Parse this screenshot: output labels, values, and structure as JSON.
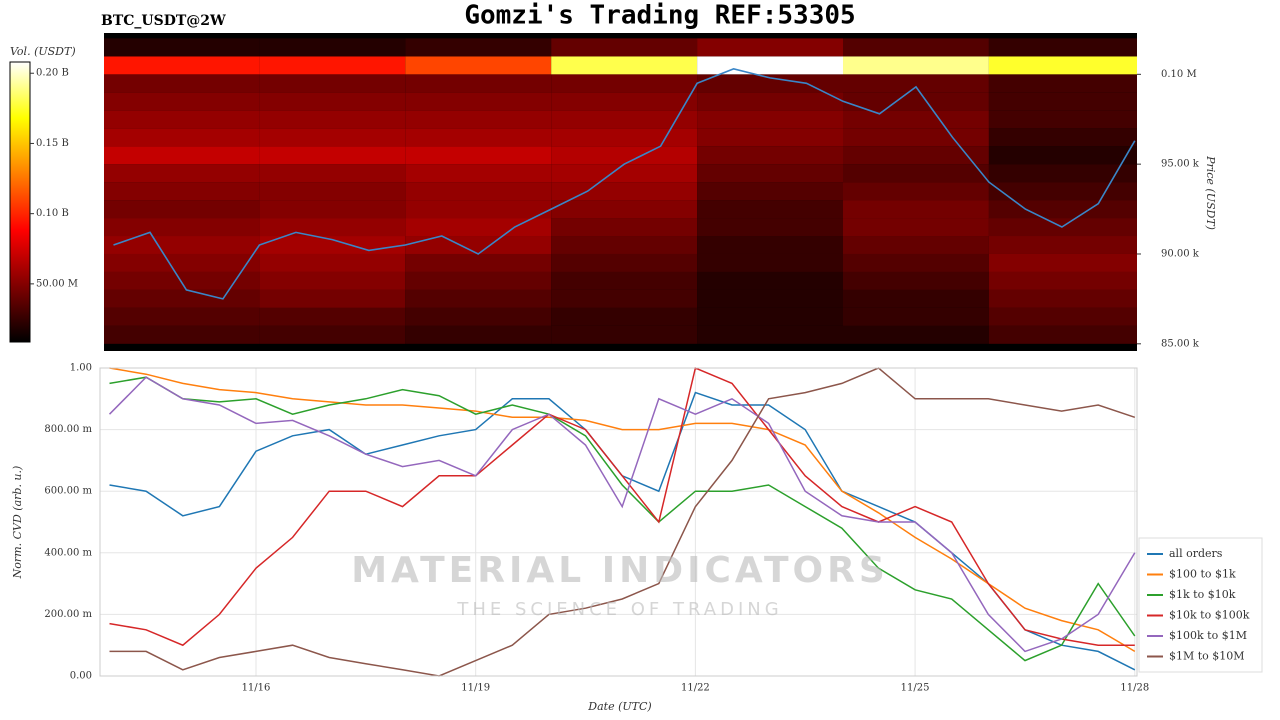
{
  "chart_data": [
    {
      "type": "heatmap",
      "title": "Gomzi's Trading REF:53305",
      "subtitle": "BTC_USDT@2W",
      "ylabel": "Price (USDT)",
      "colorbar_label": "Vol. (USDT)",
      "xlim": [
        13.87,
        28.03
      ],
      "ylim": [
        84600,
        102300
      ],
      "yticks": [
        {
          "value": 85000,
          "label": "85.00 k"
        },
        {
          "value": 90000,
          "label": "90.00 k"
        },
        {
          "value": 95000,
          "label": "95.00 k"
        },
        {
          "value": 100000,
          "label": "0.10 M"
        }
      ],
      "clim": [
        8600000,
        208000000
      ],
      "cticks": [
        {
          "value": 50000000,
          "label": "50.00 M"
        },
        {
          "value": 100000000,
          "label": "0.10 B"
        },
        {
          "value": 150000000,
          "label": "0.15 B"
        },
        {
          "value": 200000000,
          "label": "0.20 B"
        }
      ],
      "x_edges": [
        13.87,
        16,
        18,
        20,
        22,
        24,
        26,
        28.03
      ],
      "y_edges": [
        85000,
        86000,
        87000,
        88000,
        89000,
        90000,
        91000,
        92000,
        93000,
        94000,
        95000,
        96000,
        97000,
        98000,
        99000,
        100000,
        101000,
        102000
      ],
      "values": [
        [
          30000000,
          30000000,
          25000000,
          25000000,
          20000000,
          20000000,
          30000000
        ],
        [
          35000000,
          35000000,
          30000000,
          25000000,
          20000000,
          25000000,
          35000000
        ],
        [
          40000000,
          45000000,
          35000000,
          30000000,
          20000000,
          25000000,
          40000000
        ],
        [
          45000000,
          50000000,
          40000000,
          30000000,
          20000000,
          30000000,
          45000000
        ],
        [
          50000000,
          55000000,
          45000000,
          35000000,
          25000000,
          35000000,
          50000000
        ],
        [
          55000000,
          60000000,
          55000000,
          40000000,
          25000000,
          40000000,
          45000000
        ],
        [
          50000000,
          55000000,
          60000000,
          45000000,
          30000000,
          45000000,
          40000000
        ],
        [
          45000000,
          50000000,
          55000000,
          50000000,
          30000000,
          45000000,
          35000000
        ],
        [
          50000000,
          50000000,
          55000000,
          55000000,
          35000000,
          40000000,
          30000000
        ],
        [
          55000000,
          55000000,
          60000000,
          60000000,
          40000000,
          35000000,
          25000000
        ],
        [
          70000000,
          70000000,
          70000000,
          65000000,
          45000000,
          40000000,
          20000000
        ],
        [
          60000000,
          60000000,
          60000000,
          60000000,
          50000000,
          45000000,
          25000000
        ],
        [
          55000000,
          55000000,
          55000000,
          55000000,
          50000000,
          45000000,
          30000000
        ],
        [
          50000000,
          50000000,
          50000000,
          50000000,
          45000000,
          40000000,
          30000000
        ],
        [
          45000000,
          45000000,
          45000000,
          45000000,
          40000000,
          40000000,
          30000000
        ],
        [
          95000000,
          95000000,
          110000000,
          180000000,
          208000000,
          190000000,
          175000000
        ],
        [
          20000000,
          20000000,
          25000000,
          40000000,
          50000000,
          35000000,
          25000000
        ]
      ],
      "price": {
        "color": "#3a86c8",
        "x": [
          14,
          14.5,
          15,
          15.5,
          16,
          16.5,
          17,
          17.5,
          18,
          18.5,
          19,
          19.5,
          20,
          20.5,
          21,
          21.5,
          22,
          22.5,
          23,
          23.5,
          24,
          24.5,
          25,
          25.5,
          26,
          26.5,
          27,
          27.5,
          28
        ],
        "values": [
          90500,
          91200,
          88000,
          87500,
          90500,
          91200,
          90800,
          90200,
          90500,
          91000,
          90000,
          91500,
          92500,
          93500,
          95000,
          96000,
          99500,
          100300,
          99800,
          99500,
          98500,
          97800,
          99300,
          96500,
          94000,
          92500,
          91500,
          92800,
          96300
        ]
      }
    },
    {
      "type": "line",
      "xlabel": "Date (UTC)",
      "ylabel": "Norm. CVD (arb. u.)",
      "watermark": "MATERIAL INDICATORS",
      "watermark_sub": "THE SCIENCE OF TRADING",
      "xlim": [
        13.87,
        28.03
      ],
      "ylim": [
        0,
        1
      ],
      "xticks": [
        {
          "value": 16,
          "label": "11/16"
        },
        {
          "value": 19,
          "label": "11/19"
        },
        {
          "value": 22,
          "label": "11/22"
        },
        {
          "value": 25,
          "label": "11/25"
        },
        {
          "value": 28,
          "label": "11/28"
        }
      ],
      "yticks": [
        {
          "value": 0,
          "label": "0.00"
        },
        {
          "value": 0.2,
          "label": "200.00 m"
        },
        {
          "value": 0.4,
          "label": "400.00 m"
        },
        {
          "value": 0.6,
          "label": "600.00 m"
        },
        {
          "value": 0.8,
          "label": "800.00 m"
        },
        {
          "value": 1,
          "label": "1.00"
        }
      ],
      "grid": true,
      "legend": "lower right",
      "x": [
        14,
        14.5,
        15,
        15.5,
        16,
        16.5,
        17,
        17.5,
        18,
        18.5,
        19,
        19.5,
        20,
        20.5,
        21,
        21.5,
        22,
        22.5,
        23,
        23.5,
        24,
        24.5,
        25,
        25.5,
        26,
        26.5,
        27,
        27.5,
        28
      ],
      "series": [
        {
          "name": "all orders",
          "color": "#1f77b4",
          "values": [
            0.62,
            0.6,
            0.52,
            0.55,
            0.73,
            0.78,
            0.8,
            0.72,
            0.75,
            0.78,
            0.8,
            0.9,
            0.9,
            0.8,
            0.65,
            0.6,
            0.92,
            0.88,
            0.88,
            0.8,
            0.6,
            0.55,
            0.5,
            0.4,
            0.3,
            0.15,
            0.1,
            0.08,
            0.02
          ]
        },
        {
          "name": "$100 to $1k",
          "color": "#ff7f0e",
          "values": [
            1,
            0.98,
            0.95,
            0.93,
            0.92,
            0.9,
            0.89,
            0.88,
            0.88,
            0.87,
            0.86,
            0.84,
            0.84,
            0.83,
            0.8,
            0.8,
            0.82,
            0.82,
            0.8,
            0.75,
            0.6,
            0.53,
            0.45,
            0.38,
            0.3,
            0.22,
            0.18,
            0.15,
            0.08
          ]
        },
        {
          "name": "$1k to $10k",
          "color": "#2ca02c",
          "values": [
            0.95,
            0.97,
            0.9,
            0.89,
            0.9,
            0.85,
            0.88,
            0.9,
            0.93,
            0.91,
            0.85,
            0.88,
            0.85,
            0.78,
            0.62,
            0.5,
            0.6,
            0.6,
            0.62,
            0.55,
            0.48,
            0.35,
            0.28,
            0.25,
            0.15,
            0.05,
            0.1,
            0.3,
            0.13
          ]
        },
        {
          "name": "$10k to $100k",
          "color": "#d62728",
          "values": [
            0.17,
            0.15,
            0.1,
            0.2,
            0.35,
            0.45,
            0.6,
            0.6,
            0.55,
            0.65,
            0.65,
            0.75,
            0.85,
            0.8,
            0.65,
            0.5,
            1,
            0.95,
            0.8,
            0.65,
            0.55,
            0.5,
            0.55,
            0.5,
            0.3,
            0.15,
            0.12,
            0.1,
            0.1
          ]
        },
        {
          "name": "$100k to $1M",
          "color": "#9467bd",
          "values": [
            0.85,
            0.97,
            0.9,
            0.88,
            0.82,
            0.83,
            0.78,
            0.72,
            0.68,
            0.7,
            0.65,
            0.8,
            0.85,
            0.75,
            0.55,
            0.9,
            0.85,
            0.9,
            0.82,
            0.6,
            0.52,
            0.5,
            0.5,
            0.4,
            0.2,
            0.08,
            0.12,
            0.2,
            0.4
          ]
        },
        {
          "name": "$1M to $10M",
          "color": "#8c564b",
          "values": [
            0.08,
            0.08,
            0.02,
            0.06,
            0.08,
            0.1,
            0.06,
            0.04,
            0.02,
            0,
            0.05,
            0.1,
            0.2,
            0.22,
            0.25,
            0.3,
            0.55,
            0.7,
            0.9,
            0.92,
            0.95,
            1,
            0.9,
            0.9,
            0.9,
            0.88,
            0.86,
            0.88,
            0.84
          ]
        }
      ]
    }
  ]
}
